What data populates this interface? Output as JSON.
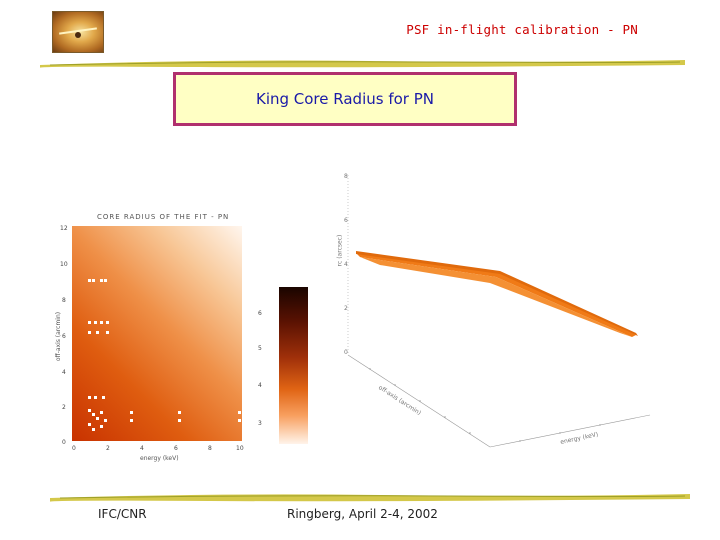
{
  "header": {
    "title": "PSF in-flight calibration - PN"
  },
  "slide": {
    "title": "King Core Radius for PN"
  },
  "heatmap_plot": {
    "title": "CORE RADIUS OF THE FIT - PN",
    "xlabel": "energy (keV)",
    "ylabel": "off-axis (arcmin)",
    "x_ticks": [
      "0",
      "2",
      "4",
      "6",
      "8",
      "10"
    ],
    "y_ticks": [
      "0",
      "2",
      "4",
      "6",
      "8",
      "10",
      "12"
    ],
    "colorbar_ticks": [
      "6",
      "5",
      "4",
      "3"
    ]
  },
  "surface_plot": {
    "z_label": "rc (arcsec)",
    "z_ticks": [
      "8",
      "6",
      "4",
      "2",
      "0"
    ],
    "x_axis_label": "off-axis (arcmin)",
    "y_axis_label": "energy (keV)"
  },
  "footer": {
    "left": "IFC/CNR",
    "center": "Ringberg, April 2-4, 2002"
  }
}
